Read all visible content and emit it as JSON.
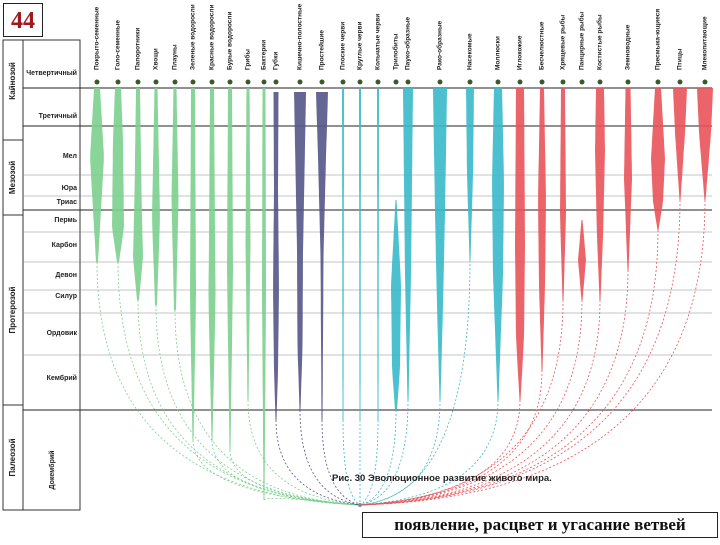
{
  "slide_number": "44",
  "figure_caption": "Рис. 30 Эволюционное развитие живого мира.",
  "bottom_caption": "появление, расцвет и угасание ветвей",
  "eras": [
    {
      "id": "cenozoic",
      "label": "Кайнозой"
    },
    {
      "id": "mesozoic",
      "label": "Мезозой"
    },
    {
      "id": "proterozoic",
      "label": "Протерозой"
    },
    {
      "id": "paleozoic",
      "label": "Палеозой"
    }
  ],
  "periods": [
    {
      "id": "quaternary",
      "label": "Четвертичный"
    },
    {
      "id": "tertiary",
      "label": "Третичный"
    },
    {
      "id": "cretaceous",
      "label": "Мел"
    },
    {
      "id": "jurassic",
      "label": "Юра"
    },
    {
      "id": "triassic",
      "label": "Триас"
    },
    {
      "id": "permian",
      "label": "Пермь"
    },
    {
      "id": "carboniferous",
      "label": "Карбон"
    },
    {
      "id": "devonian",
      "label": "Девон"
    },
    {
      "id": "silurian",
      "label": "Силур"
    },
    {
      "id": "ordovician",
      "label": "Ордовик"
    },
    {
      "id": "cambrian",
      "label": "Кембрий"
    },
    {
      "id": "precambrian",
      "label": "Докембрий"
    }
  ],
  "groups": [
    {
      "id": "angiosperms",
      "label": "Покрыто-семенные",
      "color": "#7ccf8e"
    },
    {
      "id": "gymnosperms",
      "label": "Голо-семенные",
      "color": "#7ccf8e"
    },
    {
      "id": "ferns",
      "label": "Папоротники",
      "color": "#7ccf8e"
    },
    {
      "id": "horsetails",
      "label": "Хвощи",
      "color": "#7ccf8e"
    },
    {
      "id": "mosses",
      "label": "Плауны",
      "color": "#7ccf8e"
    },
    {
      "id": "green_algae",
      "label": "Зеленые водоросли",
      "color": "#7ccf8e"
    },
    {
      "id": "red_algae",
      "label": "Красные водоросли",
      "color": "#7ccf8e"
    },
    {
      "id": "brown_algae",
      "label": "Бурые водоросли",
      "color": "#7ccf8e"
    },
    {
      "id": "fungi",
      "label": "Грибы",
      "color": "#7ccf8e"
    },
    {
      "id": "bacteria",
      "label": "Бактерии",
      "color": "#7ccf8e"
    },
    {
      "id": "sponges",
      "label": "Губки",
      "color": "#5a5a8a"
    },
    {
      "id": "coelenterates",
      "label": "Кишечно-полостные",
      "color": "#5a5a8a"
    },
    {
      "id": "protozoa",
      "label": "Простейшие",
      "color": "#5a5a8a"
    },
    {
      "id": "flatworms",
      "label": "Плоские черви",
      "color": "#39b9c9"
    },
    {
      "id": "roundworms",
      "label": "Круглые черви",
      "color": "#39b9c9"
    },
    {
      "id": "annelids",
      "label": "Кольчатые черви",
      "color": "#39b9c9"
    },
    {
      "id": "trilobites",
      "label": "Трилобиты",
      "color": "#39b9c9"
    },
    {
      "id": "arachnids",
      "label": "Пауко-образные",
      "color": "#39b9c9"
    },
    {
      "id": "crustaceans",
      "label": "Рако-образные",
      "color": "#39b9c9"
    },
    {
      "id": "insects",
      "label": "Насекомые",
      "color": "#39b9c9"
    },
    {
      "id": "molluscs",
      "label": "Моллюски",
      "color": "#39b9c9"
    },
    {
      "id": "echinoderms",
      "label": "Иглокожие",
      "color": "#e8535a"
    },
    {
      "id": "invertebrates",
      "label": "Бесчелюстные",
      "color": "#e8535a"
    },
    {
      "id": "cartilaginous",
      "label": "Хрящевые рыбы",
      "color": "#e8535a"
    },
    {
      "id": "armored_fish",
      "label": "Панцирные рыбы",
      "color": "#e8535a"
    },
    {
      "id": "bony_fish",
      "label": "Костистые рыбы",
      "color": "#e8535a"
    },
    {
      "id": "amphibians",
      "label": "Земноводные",
      "color": "#e8535a"
    },
    {
      "id": "reptiles",
      "label": "Пресмыка-ющиеся",
      "color": "#e8535a"
    },
    {
      "id": "birds",
      "label": "Птицы",
      "color": "#e8535a"
    },
    {
      "id": "mammals",
      "label": "Млекопитающие",
      "color": "#e8535a"
    }
  ]
}
